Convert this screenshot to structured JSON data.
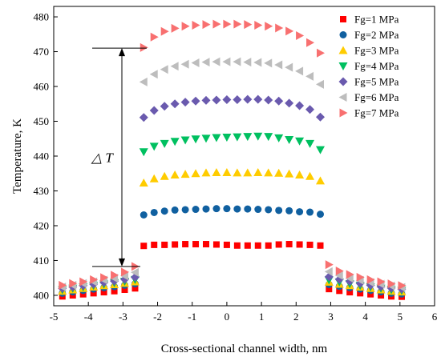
{
  "chart_data": {
    "type": "scatter",
    "xlabel": "Cross-sectional channel width, nm",
    "ylabel": "Temperature, K",
    "xlim": [
      -5,
      6
    ],
    "ylim": [
      397,
      483
    ],
    "xticks": [
      -5,
      -4,
      -3,
      -2,
      -1,
      0,
      1,
      2,
      3,
      4,
      5,
      6
    ],
    "yticks": [
      400,
      410,
      420,
      430,
      440,
      450,
      460,
      470,
      480
    ],
    "grid": false,
    "legend_position": "top-right",
    "annotation": {
      "text": "△ T",
      "from_y": 408.3,
      "to_y": 471.0
    },
    "series": [
      {
        "name": "Fg=1 MPa",
        "color": "#ff0000",
        "marker": "square",
        "left": [
          [
            -4.75,
            399.7
          ],
          [
            -4.45,
            400.0
          ],
          [
            -4.15,
            400.3
          ],
          [
            -3.85,
            400.6
          ],
          [
            -3.55,
            400.9
          ],
          [
            -3.25,
            401.2
          ],
          [
            -2.95,
            401.6
          ],
          [
            -2.65,
            402.0
          ]
        ],
        "center": [
          [
            -2.4,
            414.2
          ],
          [
            -2.1,
            414.5
          ],
          [
            -1.8,
            414.5
          ],
          [
            -1.5,
            414.6
          ],
          [
            -1.2,
            414.7
          ],
          [
            -0.9,
            414.7
          ],
          [
            -0.6,
            414.7
          ],
          [
            -0.3,
            414.6
          ],
          [
            0.0,
            414.5
          ],
          [
            0.3,
            414.3
          ],
          [
            0.6,
            414.3
          ],
          [
            0.9,
            414.3
          ],
          [
            1.2,
            414.3
          ],
          [
            1.5,
            414.6
          ],
          [
            1.8,
            414.7
          ],
          [
            2.1,
            414.6
          ],
          [
            2.4,
            414.5
          ],
          [
            2.7,
            414.3
          ]
        ],
        "right": [
          [
            2.95,
            401.8
          ],
          [
            3.25,
            401.3
          ],
          [
            3.55,
            400.9
          ],
          [
            3.85,
            400.6
          ],
          [
            4.15,
            400.3
          ],
          [
            4.45,
            400.0
          ],
          [
            4.75,
            399.7
          ],
          [
            5.05,
            399.6
          ]
        ]
      },
      {
        "name": "Fg=2 MPa",
        "color": "#1060a0",
        "marker": "circle",
        "left": [
          [
            -4.75,
            400.6
          ],
          [
            -4.45,
            401.0
          ],
          [
            -4.15,
            401.4
          ],
          [
            -3.85,
            401.8
          ],
          [
            -3.55,
            402.2
          ],
          [
            -3.25,
            402.5
          ],
          [
            -2.95,
            402.9
          ],
          [
            -2.65,
            403.3
          ]
        ],
        "center": [
          [
            -2.4,
            423.1
          ],
          [
            -2.1,
            423.8
          ],
          [
            -1.8,
            424.2
          ],
          [
            -1.5,
            424.5
          ],
          [
            -1.2,
            424.6
          ],
          [
            -0.9,
            424.7
          ],
          [
            -0.6,
            424.8
          ],
          [
            -0.3,
            424.9
          ],
          [
            0.0,
            424.9
          ],
          [
            0.3,
            424.8
          ],
          [
            0.6,
            424.8
          ],
          [
            0.9,
            424.7
          ],
          [
            1.2,
            424.6
          ],
          [
            1.5,
            424.4
          ],
          [
            1.8,
            424.3
          ],
          [
            2.1,
            424.0
          ],
          [
            2.4,
            423.9
          ],
          [
            2.7,
            423.3
          ]
        ],
        "right": [
          [
            2.95,
            403.1
          ],
          [
            3.25,
            402.6
          ],
          [
            3.55,
            402.2
          ],
          [
            3.85,
            401.8
          ],
          [
            4.15,
            401.4
          ],
          [
            4.45,
            401.0
          ],
          [
            4.75,
            400.6
          ],
          [
            5.05,
            400.4
          ]
        ]
      },
      {
        "name": "Fg=3 MPa",
        "color": "#ffcc00",
        "marker": "triangle-up",
        "left": [
          [
            -4.75,
            401.2
          ],
          [
            -4.45,
            401.6
          ],
          [
            -4.15,
            402.0
          ],
          [
            -3.85,
            402.4
          ],
          [
            -3.55,
            402.8
          ],
          [
            -3.25,
            403.1
          ],
          [
            -2.95,
            403.5
          ],
          [
            -2.65,
            403.9
          ]
        ],
        "center": [
          [
            -2.4,
            432.3
          ],
          [
            -2.1,
            433.5
          ],
          [
            -1.8,
            434.2
          ],
          [
            -1.5,
            434.6
          ],
          [
            -1.2,
            434.8
          ],
          [
            -0.9,
            435.0
          ],
          [
            -0.6,
            435.2
          ],
          [
            -0.3,
            435.3
          ],
          [
            0.0,
            435.3
          ],
          [
            0.3,
            435.2
          ],
          [
            0.6,
            435.2
          ],
          [
            0.9,
            435.3
          ],
          [
            1.2,
            435.2
          ],
          [
            1.5,
            435.1
          ],
          [
            1.8,
            434.9
          ],
          [
            2.1,
            434.6
          ],
          [
            2.4,
            434.2
          ],
          [
            2.7,
            432.9
          ]
        ],
        "right": [
          [
            2.95,
            403.8
          ],
          [
            3.25,
            403.2
          ],
          [
            3.55,
            402.8
          ],
          [
            3.85,
            402.4
          ],
          [
            4.15,
            402.0
          ],
          [
            4.45,
            401.6
          ],
          [
            4.75,
            401.2
          ],
          [
            5.05,
            401.0
          ]
        ]
      },
      {
        "name": "Fg=4 MPa",
        "color": "#00c060",
        "marker": "triangle-down",
        "left": [
          [
            -4.75,
            401.6
          ],
          [
            -4.45,
            402.0
          ],
          [
            -4.15,
            402.4
          ],
          [
            -3.85,
            402.8
          ],
          [
            -3.55,
            403.2
          ],
          [
            -3.25,
            403.6
          ],
          [
            -2.95,
            404.0
          ],
          [
            -2.65,
            404.5
          ]
        ],
        "center": [
          [
            -2.4,
            441.2
          ],
          [
            -2.1,
            442.8
          ],
          [
            -1.8,
            443.6
          ],
          [
            -1.5,
            444.2
          ],
          [
            -1.2,
            444.6
          ],
          [
            -0.9,
            444.9
          ],
          [
            -0.6,
            445.1
          ],
          [
            -0.3,
            445.3
          ],
          [
            0.0,
            445.4
          ],
          [
            0.3,
            445.5
          ],
          [
            0.6,
            445.6
          ],
          [
            0.9,
            445.7
          ],
          [
            1.2,
            445.6
          ],
          [
            1.5,
            445.2
          ],
          [
            1.8,
            444.7
          ],
          [
            2.1,
            444.3
          ],
          [
            2.4,
            443.6
          ],
          [
            2.7,
            441.8
          ]
        ],
        "right": [
          [
            2.95,
            404.4
          ],
          [
            3.25,
            403.8
          ],
          [
            3.55,
            403.3
          ],
          [
            3.85,
            402.8
          ],
          [
            4.15,
            402.4
          ],
          [
            4.45,
            402.0
          ],
          [
            4.75,
            401.6
          ],
          [
            5.05,
            401.4
          ]
        ]
      },
      {
        "name": "Fg=5 MPa",
        "color": "#6a5aae",
        "marker": "diamond",
        "left": [
          [
            -4.75,
            402.0
          ],
          [
            -4.45,
            402.4
          ],
          [
            -4.15,
            402.8
          ],
          [
            -3.85,
            403.2
          ],
          [
            -3.55,
            403.7
          ],
          [
            -3.25,
            404.1
          ],
          [
            -2.95,
            404.6
          ],
          [
            -2.65,
            405.2
          ]
        ],
        "center": [
          [
            -2.4,
            451.1
          ],
          [
            -2.1,
            453.1
          ],
          [
            -1.8,
            454.3
          ],
          [
            -1.5,
            455.0
          ],
          [
            -1.2,
            455.5
          ],
          [
            -0.9,
            455.8
          ],
          [
            -0.6,
            456.0
          ],
          [
            -0.3,
            456.1
          ],
          [
            0.0,
            456.2
          ],
          [
            0.3,
            456.2
          ],
          [
            0.6,
            456.3
          ],
          [
            0.9,
            456.3
          ],
          [
            1.2,
            456.1
          ],
          [
            1.5,
            455.8
          ],
          [
            1.8,
            455.2
          ],
          [
            2.1,
            454.5
          ],
          [
            2.4,
            453.4
          ],
          [
            2.7,
            451.2
          ]
        ],
        "right": [
          [
            2.95,
            405.3
          ],
          [
            3.25,
            404.6
          ],
          [
            3.55,
            404.0
          ],
          [
            3.85,
            403.4
          ],
          [
            4.15,
            402.9
          ],
          [
            4.45,
            402.5
          ],
          [
            4.75,
            402.1
          ],
          [
            5.05,
            401.8
          ]
        ]
      },
      {
        "name": "Fg=6 MPa",
        "color": "#bdbdbd",
        "marker": "triangle-left",
        "left": [
          [
            -4.75,
            402.4
          ],
          [
            -4.45,
            402.9
          ],
          [
            -4.15,
            403.4
          ],
          [
            -3.85,
            403.9
          ],
          [
            -3.55,
            404.4
          ],
          [
            -3.25,
            404.9
          ],
          [
            -2.95,
            405.6
          ],
          [
            -2.65,
            406.6
          ]
        ],
        "center": [
          [
            -2.4,
            461.3
          ],
          [
            -2.1,
            463.5
          ],
          [
            -1.8,
            464.9
          ],
          [
            -1.5,
            465.8
          ],
          [
            -1.2,
            466.4
          ],
          [
            -0.9,
            466.8
          ],
          [
            -0.6,
            467.0
          ],
          [
            -0.3,
            467.1
          ],
          [
            0.0,
            467.1
          ],
          [
            0.3,
            467.1
          ],
          [
            0.6,
            467.0
          ],
          [
            0.9,
            466.9
          ],
          [
            1.2,
            466.7
          ],
          [
            1.5,
            466.2
          ],
          [
            1.8,
            465.5
          ],
          [
            2.1,
            464.4
          ],
          [
            2.4,
            462.9
          ],
          [
            2.7,
            460.6
          ]
        ],
        "right": [
          [
            2.95,
            406.8
          ],
          [
            3.25,
            405.7
          ],
          [
            3.55,
            404.9
          ],
          [
            3.85,
            404.3
          ],
          [
            4.15,
            403.7
          ],
          [
            4.45,
            403.2
          ],
          [
            4.75,
            402.7
          ],
          [
            5.05,
            402.3
          ]
        ]
      },
      {
        "name": "Fg=7 MPa",
        "color": "#f87070",
        "marker": "triangle-right",
        "left": [
          [
            -4.75,
            402.9
          ],
          [
            -4.45,
            403.4
          ],
          [
            -4.15,
            403.9
          ],
          [
            -3.85,
            404.5
          ],
          [
            -3.55,
            405.1
          ],
          [
            -3.25,
            405.8
          ],
          [
            -2.95,
            406.7
          ],
          [
            -2.65,
            408.3
          ]
        ],
        "center": [
          [
            -2.4,
            471.2
          ],
          [
            -2.1,
            474.2
          ],
          [
            -1.8,
            475.8
          ],
          [
            -1.5,
            476.7
          ],
          [
            -1.2,
            477.3
          ],
          [
            -0.9,
            477.6
          ],
          [
            -0.6,
            477.8
          ],
          [
            -0.3,
            477.9
          ],
          [
            0.0,
            477.9
          ],
          [
            0.3,
            477.9
          ],
          [
            0.6,
            477.8
          ],
          [
            0.9,
            477.6
          ],
          [
            1.2,
            477.3
          ],
          [
            1.5,
            476.8
          ],
          [
            1.8,
            475.9
          ],
          [
            2.1,
            474.6
          ],
          [
            2.4,
            472.6
          ],
          [
            2.7,
            469.6
          ]
        ],
        "right": [
          [
            2.95,
            408.8
          ],
          [
            3.25,
            407.0
          ],
          [
            3.55,
            406.0
          ],
          [
            3.85,
            405.2
          ],
          [
            4.15,
            404.5
          ],
          [
            4.45,
            403.9
          ],
          [
            4.75,
            403.3
          ],
          [
            5.05,
            402.8
          ]
        ]
      }
    ]
  }
}
